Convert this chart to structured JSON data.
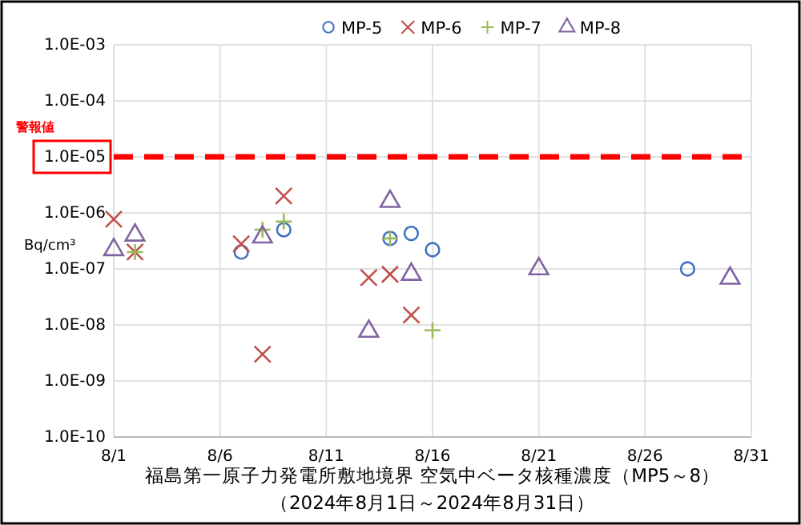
{
  "chart_data": {
    "type": "scatter",
    "xlabel": "福島第一原子力発電所敷地境界 空気中ベータ核種濃度（MP5～8）",
    "ylabel": "Bq/cm³",
    "annotations": [
      "（2024年8月1日～2024年8月31日）"
    ],
    "log": "y",
    "grid": true,
    "legend": "top right",
    "xlim": [
      "2024-08-01",
      "2024-08-31"
    ],
    "xticks": [
      {
        "value": "2024-08-01",
        "label": "8/1"
      },
      {
        "value": "2024-08-06",
        "label": "8/6"
      },
      {
        "value": "2024-08-11",
        "label": "8/11"
      },
      {
        "value": "2024-08-16",
        "label": "8/16"
      },
      {
        "value": "2024-08-21",
        "label": "8/21"
      },
      {
        "value": "2024-08-26",
        "label": "8/26"
      },
      {
        "value": "2024-08-31",
        "label": "8/31"
      }
    ],
    "ylim": [
      1e-10,
      0.001
    ],
    "yticks": [
      {
        "value": 1e-10,
        "label": "1.0E-10"
      },
      {
        "value": 1e-09,
        "label": "1.0E-09"
      },
      {
        "value": 1e-08,
        "label": "1.0E-08"
      },
      {
        "value": 1e-07,
        "label": "1.0E-07"
      },
      {
        "value": 1e-06,
        "label": "1.0E-06"
      },
      {
        "value": 1e-05,
        "label": "1.0E-05"
      },
      {
        "value": 0.0001,
        "label": "1.0E-04"
      },
      {
        "value": 0.001,
        "label": "1.0E-03"
      }
    ],
    "ref_lines": [
      {
        "axis": "y",
        "value": 1e-05,
        "label": "警報値",
        "color": "#ff0000",
        "line_style": "dashed"
      }
    ],
    "series": [
      {
        "name": "MP-5",
        "color": "#4472c4",
        "marker": "circle",
        "x": [
          "2024-08-07",
          "2024-08-09",
          "2024-08-14",
          "2024-08-15",
          "2024-08-16",
          "2024-08-28"
        ],
        "values": [
          2e-07,
          5e-07,
          3.5e-07,
          4.3e-07,
          2.2e-07,
          1e-07
        ]
      },
      {
        "name": "MP-6",
        "color": "#c0504d",
        "marker": "cross",
        "x": [
          "2024-08-01",
          "2024-08-02",
          "2024-08-07",
          "2024-08-08",
          "2024-08-09",
          "2024-08-13",
          "2024-08-14",
          "2024-08-15"
        ],
        "values": [
          7.7e-07,
          2e-07,
          2.8e-07,
          3e-09,
          2e-06,
          7e-08,
          8e-08,
          1.5e-08
        ]
      },
      {
        "name": "MP-7",
        "color": "#9bbb59",
        "marker": "plus",
        "x": [
          "2024-08-02",
          "2024-08-08",
          "2024-08-09",
          "2024-08-14",
          "2024-08-16"
        ],
        "values": [
          2e-07,
          5e-07,
          7e-07,
          3.5e-07,
          8e-09
        ]
      },
      {
        "name": "MP-8",
        "color": "#8064a2",
        "marker": "triangle",
        "x": [
          "2024-08-01",
          "2024-08-02",
          "2024-08-08",
          "2024-08-13",
          "2024-08-14",
          "2024-08-15",
          "2024-08-21",
          "2024-08-30"
        ],
        "values": [
          2.2e-07,
          4e-07,
          3.7e-07,
          7.7e-09,
          1.6e-06,
          8e-08,
          1e-07,
          6.8e-08
        ]
      }
    ]
  }
}
